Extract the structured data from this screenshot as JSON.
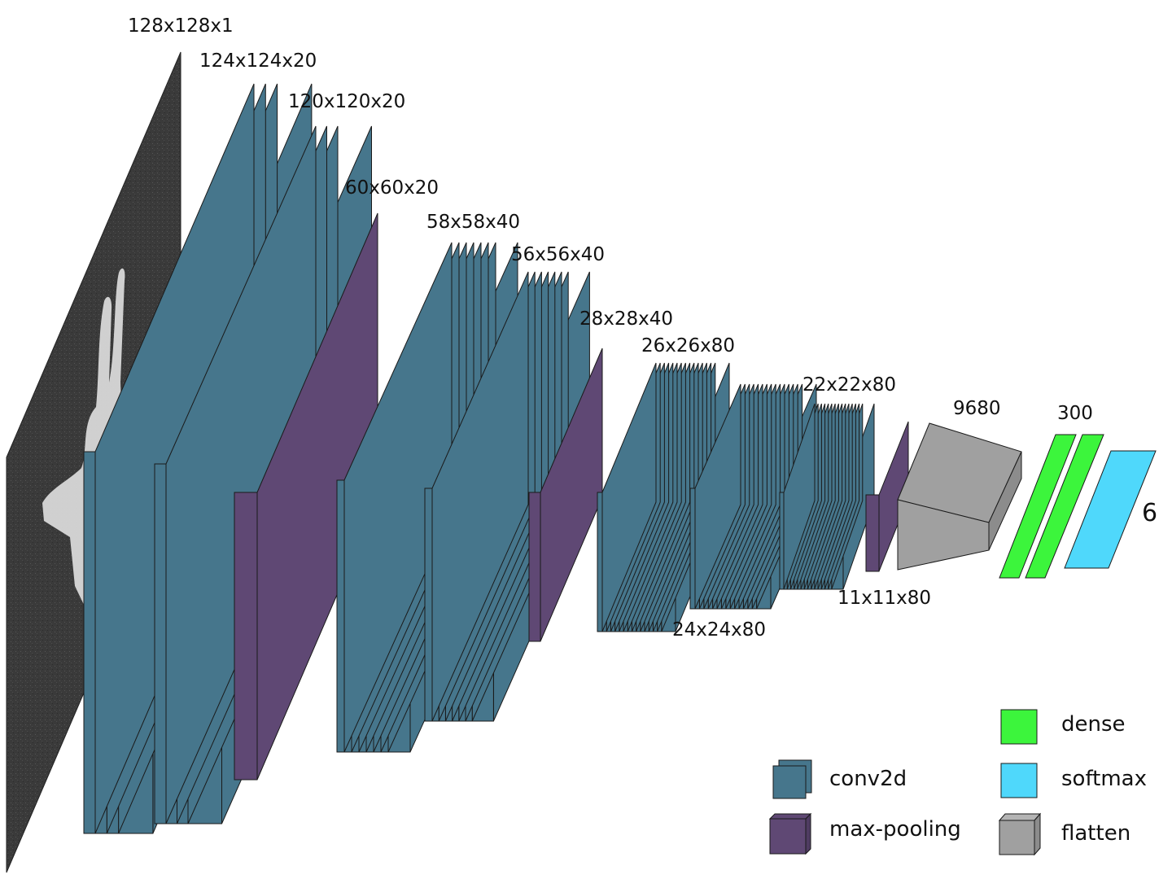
{
  "colors": {
    "conv2d": "#46768c",
    "max_pooling": "#5f4874",
    "dense": "#3cf53c",
    "softmax": "#4fd8fb",
    "flatten": "#a0a0a0",
    "input_background": "#3a3a3a",
    "stroke": "#1a1a1a"
  },
  "icons": {
    "input": "input-image-icon"
  },
  "layers": [
    {
      "type": "input",
      "shape": "128x128x1"
    },
    {
      "type": "conv2d",
      "shape": "124x124x20"
    },
    {
      "type": "conv2d",
      "shape": "120x120x20"
    },
    {
      "type": "max-pooling",
      "shape": "60x60x20"
    },
    {
      "type": "conv2d",
      "shape": "58x58x40"
    },
    {
      "type": "conv2d",
      "shape": "56x56x40"
    },
    {
      "type": "max-pooling",
      "shape": "28x28x40"
    },
    {
      "type": "conv2d",
      "shape": "26x26x80"
    },
    {
      "type": "conv2d",
      "shape": "24x24x80"
    },
    {
      "type": "conv2d",
      "shape": "22x22x80"
    },
    {
      "type": "max-pooling",
      "shape": "11x11x80"
    },
    {
      "type": "flatten",
      "shape": "9680"
    },
    {
      "type": "dense",
      "shape": "300"
    },
    {
      "type": "softmax",
      "shape": "6"
    }
  ],
  "legend": [
    {
      "key": "conv2d",
      "label": "conv2d"
    },
    {
      "key": "max_pooling",
      "label": "max-pooling"
    },
    {
      "key": "dense",
      "label": "dense"
    },
    {
      "key": "softmax",
      "label": "softmax"
    },
    {
      "key": "flatten",
      "label": "flatten"
    }
  ]
}
